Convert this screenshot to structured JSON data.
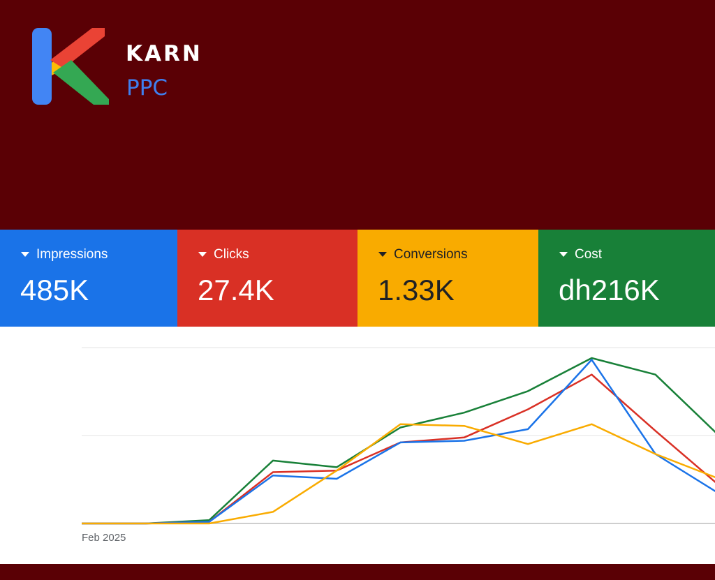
{
  "brand": {
    "name": "KARN",
    "sub": "PPC",
    "logo_colors": {
      "blue": "#4285f4",
      "red": "#ea4335",
      "yellow": "#fbbc05",
      "green": "#34a853"
    }
  },
  "colors": {
    "background": "#5a0005"
  },
  "metrics": [
    {
      "label": "Impressions",
      "value": "485K",
      "color": "#1a73e8",
      "text_color": "#ffffff"
    },
    {
      "label": "Clicks",
      "value": "27.4K",
      "color": "#d93025",
      "text_color": "#ffffff"
    },
    {
      "label": "Conversions",
      "value": "1.33K",
      "color": "#f9ab00",
      "text_color": "#202124"
    },
    {
      "label": "Cost",
      "value": "dh216K",
      "color": "#188038",
      "text_color": "#ffffff"
    }
  ],
  "chart_data": {
    "type": "line",
    "x_tick_label": "Feb 2025",
    "grid": true,
    "ylim": [
      0,
      1
    ],
    "series": [
      {
        "metric": "Cost",
        "color": "#188038",
        "values": [
          0,
          0,
          0.02,
          0.38,
          0.34,
          0.58,
          0.67,
          0.8,
          1.0,
          0.9,
          0.53
        ]
      },
      {
        "metric": "Clicks",
        "color": "#d93025",
        "values": [
          0,
          0,
          0.01,
          0.31,
          0.32,
          0.49,
          0.52,
          0.69,
          0.9,
          0.56,
          0.23
        ]
      },
      {
        "metric": "Impressions",
        "color": "#1a73e8",
        "values": [
          0,
          0,
          0.01,
          0.29,
          0.27,
          0.49,
          0.5,
          0.57,
          0.99,
          0.42,
          0.18
        ]
      },
      {
        "metric": "Conversions",
        "color": "#f9ab00",
        "values": [
          0,
          0,
          0,
          0.07,
          0.32,
          0.6,
          0.59,
          0.48,
          0.6,
          0.42,
          0.27
        ]
      }
    ]
  }
}
